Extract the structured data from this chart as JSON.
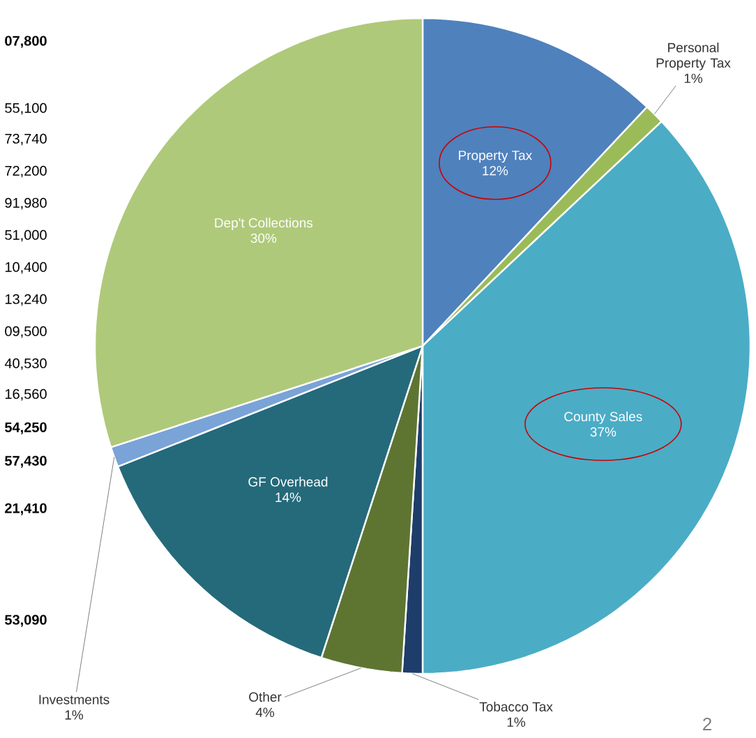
{
  "chart_data": {
    "type": "pie",
    "categories": [
      "Property Tax",
      "Personal Property Tax",
      "County Sales",
      "Tobacco Tax",
      "Other",
      "GF Overhead",
      "Investments",
      "Dep't Collections"
    ],
    "values": [
      12,
      1,
      37,
      1,
      4,
      14,
      1,
      30
    ],
    "value_labels": [
      "12%",
      "1%",
      "37%",
      "1%",
      "4%",
      "14%",
      "1%",
      "30%"
    ],
    "colors": [
      "#4f81bd",
      "#9bbb59",
      "#4bacc6",
      "#1f3d6b",
      "#5e7532",
      "#246a7a",
      "#7aa3d8",
      "#afc97a"
    ],
    "data_labels": true,
    "annotations": [
      "07,800",
      "55,100",
      "73,740",
      "72,200",
      "91,980",
      "51,000",
      "10,400",
      "13,240",
      "09,500",
      "40,530",
      "16,560",
      "54,250",
      "57,430",
      "21,410",
      "53,090",
      "2"
    ]
  }
}
